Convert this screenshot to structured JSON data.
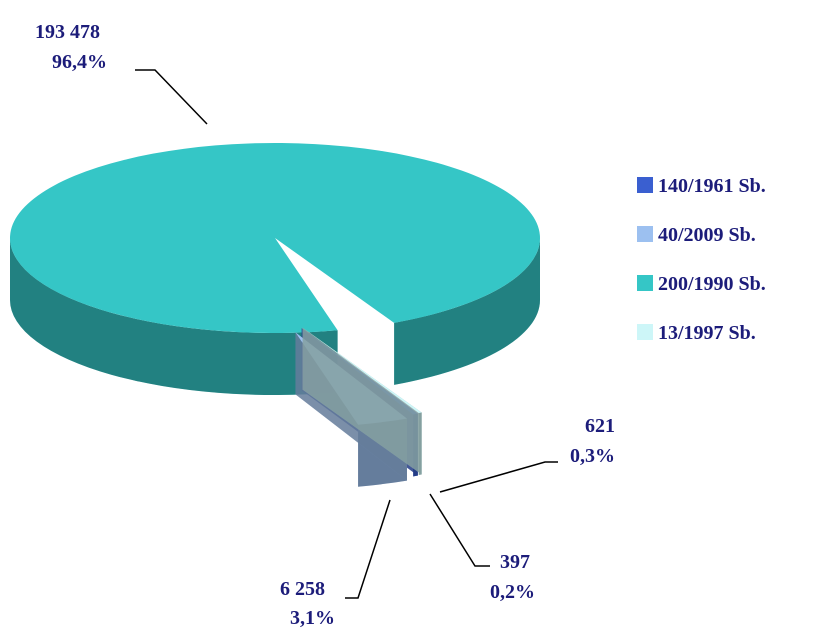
{
  "chart_data": {
    "type": "pie3d",
    "categories": [
      "140/1961 Sb.",
      "40/2009 Sb.",
      "200/1990 Sb.",
      "13/1997 Sb."
    ],
    "values": [
      621,
      6258,
      193478,
      397
    ],
    "value_labels": [
      "621",
      "6 258",
      "193 478",
      "397"
    ],
    "percents": [
      0.3,
      3.1,
      96.4,
      0.2
    ],
    "percent_labels": [
      "0,3%",
      "3,1%",
      "96,4%",
      "0,2%"
    ],
    "colors": [
      "#3a5fd0",
      "#9cc0f0",
      "#35c6c6",
      "#cdf6f8"
    ]
  }
}
